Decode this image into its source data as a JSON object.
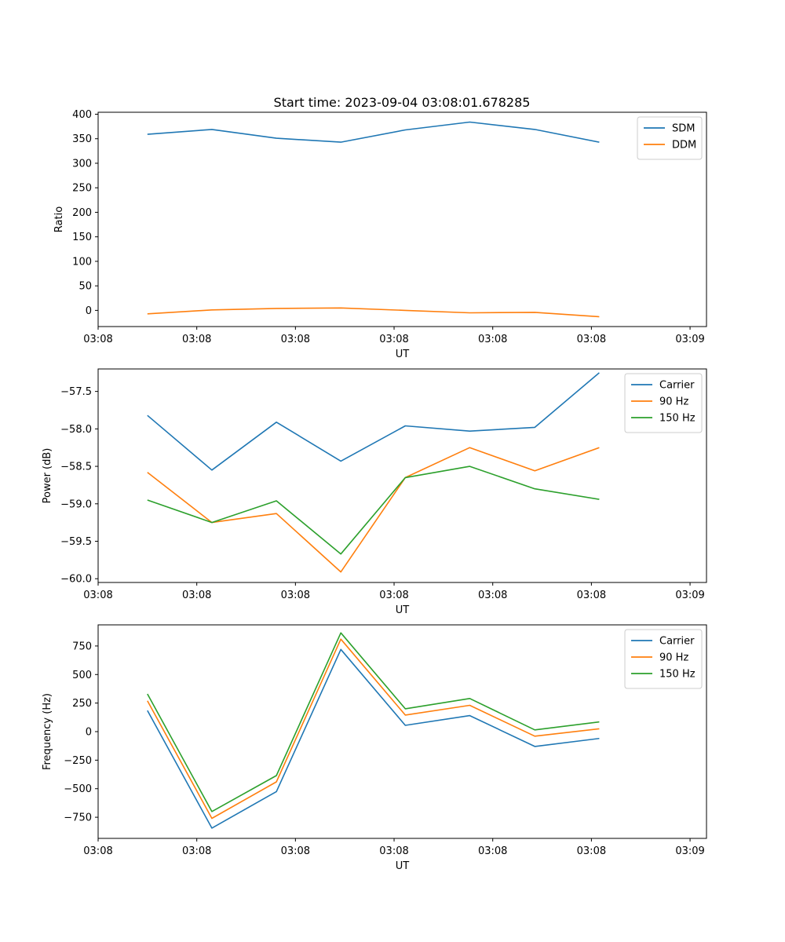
{
  "figure": {
    "title": "Start time: 2023-09-04 03:08:01.678285"
  },
  "chart_data": [
    {
      "type": "line",
      "title": "Start time: 2023-09-04 03:08:01.678285",
      "xlabel": "UT",
      "ylabel": "Ratio",
      "xlim": [
        0,
        9.25
      ],
      "ylim": [
        -33,
        404
      ],
      "x_ticks": [
        0,
        1.5,
        3,
        4.5,
        6,
        7.5,
        9
      ],
      "x_tick_labels": [
        "03:08",
        "03:08",
        "03:08",
        "03:08",
        "03:08",
        "03:08",
        "03:09"
      ],
      "y_ticks": [
        0,
        50,
        100,
        150,
        200,
        250,
        300,
        350,
        400
      ],
      "y_tick_labels": [
        "0",
        "50",
        "100",
        "150",
        "200",
        "250",
        "300",
        "350",
        "400"
      ],
      "legend_position": "top-right",
      "x": [
        0.75,
        1.73,
        2.71,
        3.69,
        4.67,
        5.65,
        6.64,
        7.62
      ],
      "series": [
        {
          "name": "SDM",
          "color": "#1f77b4",
          "values": [
            359,
            369,
            351,
            343,
            368,
            384,
            369,
            343
          ]
        },
        {
          "name": "DDM",
          "color": "#ff7f0e",
          "values": [
            -7,
            1,
            4,
            5,
            0,
            -5,
            -4,
            -13
          ]
        }
      ]
    },
    {
      "type": "line",
      "xlabel": "UT",
      "ylabel": "Power (dB)",
      "xlim": [
        0,
        9.25
      ],
      "ylim": [
        -60.05,
        -57.2
      ],
      "x_ticks": [
        0,
        1.5,
        3,
        4.5,
        6,
        7.5,
        9
      ],
      "x_tick_labels": [
        "03:08",
        "03:08",
        "03:08",
        "03:08",
        "03:08",
        "03:08",
        "03:09"
      ],
      "y_ticks": [
        -60.0,
        -59.5,
        -59.0,
        -58.5,
        -58.0,
        -57.5
      ],
      "y_tick_labels": [
        "−60.0",
        "−59.5",
        "−59.0",
        "−58.5",
        "−58.0",
        "−57.5"
      ],
      "legend_position": "top-right",
      "x": [
        0.75,
        1.73,
        2.71,
        3.69,
        4.67,
        5.65,
        6.64,
        7.62
      ],
      "series": [
        {
          "name": "Carrier",
          "color": "#1f77b4",
          "values": [
            -57.82,
            -58.55,
            -57.91,
            -58.43,
            -57.96,
            -58.03,
            -57.98,
            -57.25
          ]
        },
        {
          "name": "90 Hz",
          "color": "#ff7f0e",
          "values": [
            -58.58,
            -59.25,
            -59.13,
            -59.91,
            -58.65,
            -58.25,
            -58.56,
            -58.25
          ]
        },
        {
          "name": "150 Hz",
          "color": "#2ca02c",
          "values": [
            -58.95,
            -59.25,
            -58.96,
            -59.67,
            -58.65,
            -58.5,
            -58.8,
            -58.94
          ]
        }
      ]
    },
    {
      "type": "line",
      "xlabel": "UT",
      "ylabel": "Frequency (Hz)",
      "xlim": [
        0,
        9.25
      ],
      "ylim": [
        -935,
        935
      ],
      "x_ticks": [
        0,
        1.5,
        3,
        4.5,
        6,
        7.5,
        9
      ],
      "x_tick_labels": [
        "03:08",
        "03:08",
        "03:08",
        "03:08",
        "03:08",
        "03:08",
        "03:09"
      ],
      "y_ticks": [
        -750,
        -500,
        -250,
        0,
        250,
        500,
        750
      ],
      "y_tick_labels": [
        "−750",
        "−500",
        "−250",
        "0",
        "250",
        "500",
        "750"
      ],
      "legend_position": "top-right",
      "x": [
        0.75,
        1.73,
        2.71,
        3.69,
        4.67,
        5.65,
        6.64,
        7.62
      ],
      "series": [
        {
          "name": "Carrier",
          "color": "#1f77b4",
          "values": [
            185,
            -845,
            -525,
            720,
            55,
            140,
            -130,
            -60
          ]
        },
        {
          "name": "90 Hz",
          "color": "#ff7f0e",
          "values": [
            270,
            -760,
            -440,
            810,
            145,
            230,
            -40,
            25
          ]
        },
        {
          "name": "150 Hz",
          "color": "#2ca02c",
          "values": [
            330,
            -700,
            -385,
            865,
            200,
            290,
            15,
            85
          ]
        }
      ]
    }
  ]
}
